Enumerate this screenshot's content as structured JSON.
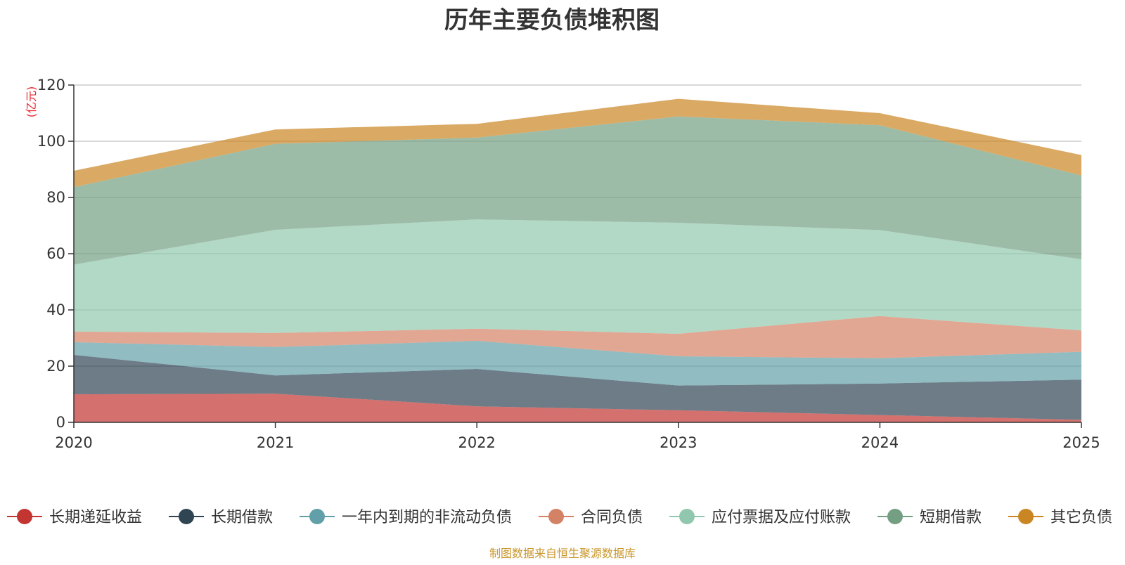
{
  "chart_data": {
    "type": "area",
    "stacked": true,
    "title": "历年主要负债堆积图",
    "ylabel": "(亿元)",
    "ylim": [
      0,
      120
    ],
    "y_ticks": [
      0,
      20,
      40,
      60,
      80,
      100,
      120
    ],
    "categories": [
      "2020",
      "2021",
      "2022",
      "2023",
      "2024",
      "2025"
    ],
    "series": [
      {
        "name": "长期递延收益",
        "color": "#c23531",
        "values": [
          10.0,
          10.2,
          5.7,
          4.3,
          2.6,
          0.9
        ]
      },
      {
        "name": "长期借款",
        "color": "#2f4554",
        "values": [
          14.0,
          6.5,
          13.3,
          8.8,
          11.2,
          14.3
        ]
      },
      {
        "name": "一年内到期的非流动负债",
        "color": "#61a0a8",
        "values": [
          4.5,
          10.1,
          10.0,
          10.4,
          9.0,
          9.9
        ]
      },
      {
        "name": "合同负债",
        "color": "#d48265",
        "values": [
          3.8,
          5.0,
          4.3,
          8.0,
          15.0,
          7.6
        ]
      },
      {
        "name": "应付票据及应付账款",
        "color": "#91c7ae",
        "values": [
          23.8,
          36.7,
          38.9,
          39.5,
          30.6,
          25.3
        ]
      },
      {
        "name": "短期借款",
        "color": "#749f83",
        "values": [
          27.6,
          30.6,
          29.1,
          37.8,
          37.3,
          29.8
        ]
      },
      {
        "name": "其它负债",
        "color": "#ca8622",
        "values": [
          5.8,
          5.1,
          4.9,
          6.3,
          4.3,
          7.3
        ]
      }
    ],
    "grid": true,
    "legend_position": "bottom"
  },
  "footer": {
    "source": "制图数据来自恒生聚源数据库"
  }
}
